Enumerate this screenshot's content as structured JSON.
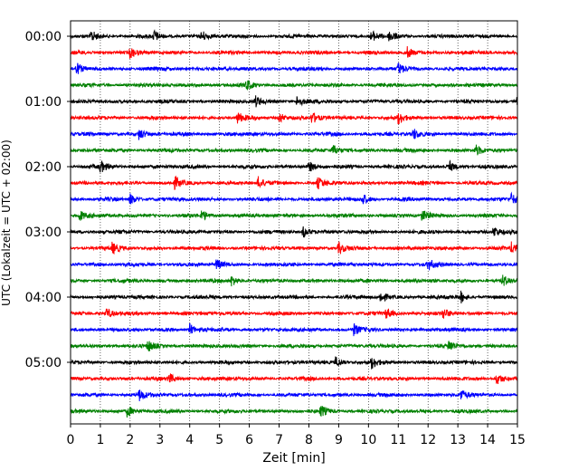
{
  "chart_data": {
    "type": "line",
    "title": "",
    "xlabel": "Zeit  [min]",
    "ylabel": "UTC (Lokalzeit = UTC + 02:00)",
    "xlim": [
      0,
      15
    ],
    "xticks": [
      0,
      1,
      2,
      3,
      4,
      5,
      6,
      7,
      8,
      9,
      10,
      11,
      12,
      13,
      14,
      15
    ],
    "xtick_labels": [
      "0",
      "1",
      "2",
      "3",
      "4",
      "5",
      "6",
      "7",
      "8",
      "9",
      "10",
      "11",
      "12",
      "13",
      "14",
      "15"
    ],
    "ytick_labels": [
      "00:00",
      "01:00",
      "02:00",
      "03:00",
      "04:00",
      "05:00"
    ],
    "trace_interval_minutes": 15,
    "trace_count": 24,
    "trace_colors": [
      "#000000",
      "#ff0000",
      "#0000ff",
      "#008000"
    ],
    "grid": "vertical dotted",
    "legend": "none",
    "events": [
      {
        "trace": 0,
        "t": 0.7
      },
      {
        "trace": 0,
        "t": 2.8
      },
      {
        "trace": 0,
        "t": 4.4
      },
      {
        "trace": 0,
        "t": 10.1
      },
      {
        "trace": 0,
        "t": 10.7
      },
      {
        "trace": 1,
        "t": 2.0
      },
      {
        "trace": 1,
        "t": 11.3
      },
      {
        "trace": 2,
        "t": 0.2
      },
      {
        "trace": 2,
        "t": 11.0
      },
      {
        "trace": 3,
        "t": 5.9
      },
      {
        "trace": 4,
        "t": 6.2
      },
      {
        "trace": 4,
        "t": 7.6
      },
      {
        "trace": 4,
        "t": 15.0
      },
      {
        "trace": 5,
        "t": 5.6
      },
      {
        "trace": 5,
        "t": 7.0
      },
      {
        "trace": 5,
        "t": 8.1
      },
      {
        "trace": 5,
        "t": 11.0
      },
      {
        "trace": 6,
        "t": 2.3
      },
      {
        "trace": 6,
        "t": 11.5
      },
      {
        "trace": 7,
        "t": 8.8
      },
      {
        "trace": 7,
        "t": 13.6
      },
      {
        "trace": 8,
        "t": 1.0
      },
      {
        "trace": 8,
        "t": 8.0
      },
      {
        "trace": 8,
        "t": 12.7
      },
      {
        "trace": 9,
        "t": 6.3
      },
      {
        "trace": 9,
        "t": 8.3
      },
      {
        "trace": 9,
        "t": 3.5
      },
      {
        "trace": 10,
        "t": 2.0
      },
      {
        "trace": 10,
        "t": 9.8
      },
      {
        "trace": 10,
        "t": 14.8
      },
      {
        "trace": 11,
        "t": 0.3
      },
      {
        "trace": 11,
        "t": 4.4
      },
      {
        "trace": 11,
        "t": 11.8
      },
      {
        "trace": 12,
        "t": 7.8
      },
      {
        "trace": 12,
        "t": 14.2
      },
      {
        "trace": 13,
        "t": 1.4
      },
      {
        "trace": 13,
        "t": 9.0
      },
      {
        "trace": 13,
        "t": 14.8
      },
      {
        "trace": 14,
        "t": 4.9
      },
      {
        "trace": 14,
        "t": 12.0
      },
      {
        "trace": 15,
        "t": 5.4
      },
      {
        "trace": 15,
        "t": 14.5
      },
      {
        "trace": 16,
        "t": 10.4
      },
      {
        "trace": 16,
        "t": 13.1
      },
      {
        "trace": 17,
        "t": 1.2
      },
      {
        "trace": 17,
        "t": 10.6
      },
      {
        "trace": 17,
        "t": 12.5
      },
      {
        "trace": 18,
        "t": 4.0
      },
      {
        "trace": 18,
        "t": 9.5
      },
      {
        "trace": 19,
        "t": 2.6
      },
      {
        "trace": 19,
        "t": 12.7
      },
      {
        "trace": 20,
        "t": 8.9
      },
      {
        "trace": 20,
        "t": 10.1
      },
      {
        "trace": 21,
        "t": 3.3
      },
      {
        "trace": 21,
        "t": 14.3
      },
      {
        "trace": 22,
        "t": 2.3
      },
      {
        "trace": 22,
        "t": 13.1
      },
      {
        "trace": 23,
        "t": 1.9
      },
      {
        "trace": 23,
        "t": 8.4
      }
    ]
  }
}
